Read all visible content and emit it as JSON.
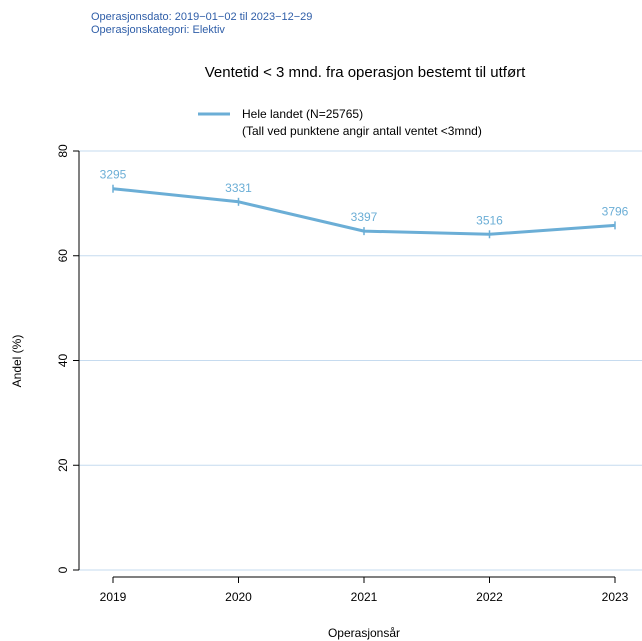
{
  "header": {
    "line1": "Operasjonsdato: 2019−01−02 til 2023−12−29",
    "line2": "Operasjonskategori: Elektiv"
  },
  "chart_data": {
    "type": "line",
    "title": "Ventetid < 3 mnd. fra operasjon bestemt til utført",
    "xlabel": "Operasjonsår",
    "ylabel": "Andel (%)",
    "ylim": [
      0,
      80
    ],
    "yticks": [
      "0",
      "20",
      "40",
      "60",
      "80"
    ],
    "x": [
      "2019",
      "2020",
      "2021",
      "2022",
      "2023"
    ],
    "legend": {
      "position": "top-center",
      "entry": "Hele landet (N=25765)",
      "note": "(Tall ved punktene angir antall ventet <3mnd)"
    },
    "series": [
      {
        "name": "Hele landet (N=25765)",
        "color": "#6baed6",
        "values": [
          72.8,
          70.3,
          64.7,
          64.1,
          65.8
        ],
        "labels": [
          "3295",
          "3331",
          "3397",
          "3516",
          "3796"
        ]
      }
    ],
    "grid": true,
    "grid_color": "#c6dbef"
  }
}
